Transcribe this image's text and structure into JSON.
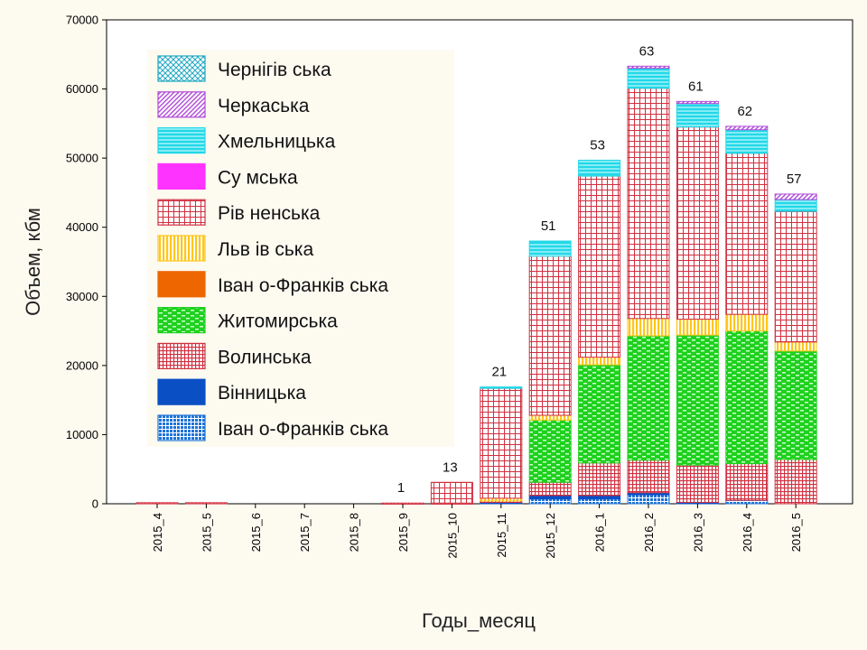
{
  "chart_data": {
    "type": "bar",
    "stacked": true,
    "xlabel": "Годы_месяц",
    "ylabel": "Объем, кбм",
    "ylim": [
      0,
      70000
    ],
    "yticks": [
      0,
      10000,
      20000,
      30000,
      40000,
      50000,
      60000,
      70000
    ],
    "grid": false,
    "legend_position": "top-left",
    "categories": [
      "2015_4",
      "2015_5",
      "2015_6",
      "2015_7",
      "2015_8",
      "2015_9",
      "2015_10",
      "2015_11",
      "2015_12",
      "2016_1",
      "2016_2",
      "2016_3",
      "2016_4",
      "2016_5"
    ],
    "annotations": [
      "",
      "",
      "",
      "",
      "",
      "1",
      "13",
      "21",
      "51",
      "53",
      "63",
      "61",
      "62",
      "57"
    ],
    "series": [
      {
        "name": "Іван о-Франків ська",
        "color": "#1e73d8",
        "pattern": "dots",
        "values": [
          0,
          0,
          0,
          0,
          0,
          0,
          0,
          0,
          700,
          700,
          1300,
          0,
          500,
          0
        ]
      },
      {
        "name": "Вінницька",
        "color": "#0a4fc4",
        "pattern": "solid",
        "values": [
          0,
          0,
          0,
          0,
          0,
          0,
          0,
          200,
          500,
          500,
          300,
          200,
          0,
          0
        ]
      },
      {
        "name": "Волинська",
        "color": "#d03040",
        "pattern": "dense-grid",
        "values": [
          150,
          150,
          0,
          0,
          0,
          100,
          100,
          200,
          1900,
          4700,
          4700,
          5400,
          5300,
          6400
        ]
      },
      {
        "name": "Житомирська",
        "color": "#1fd11f",
        "pattern": "bricks",
        "values": [
          0,
          0,
          0,
          0,
          0,
          0,
          0,
          0,
          9000,
          14200,
          18000,
          18800,
          19200,
          15700
        ]
      },
      {
        "name": "Іван о-Франків ська",
        "color": "#ee6600",
        "pattern": "solid",
        "values": [
          0,
          0,
          0,
          0,
          0,
          0,
          0,
          0,
          0,
          0,
          0,
          0,
          0,
          0
        ]
      },
      {
        "name": "Льв ів ська",
        "color": "#ffc61a",
        "pattern": "vstripes",
        "values": [
          0,
          0,
          0,
          0,
          0,
          0,
          0,
          400,
          700,
          1100,
          2500,
          2300,
          2400,
          1300
        ]
      },
      {
        "name": "Рів ненська",
        "color": "#d03040",
        "pattern": "grid",
        "values": [
          0,
          0,
          0,
          0,
          0,
          0,
          3000,
          15900,
          23000,
          26200,
          33300,
          27800,
          23300,
          18900
        ]
      },
      {
        "name": "Су мська",
        "color": "#ff33ff",
        "pattern": "solid",
        "values": [
          0,
          0,
          0,
          0,
          0,
          0,
          0,
          0,
          0,
          0,
          0,
          0,
          0,
          0
        ]
      },
      {
        "name": "Хмельницька",
        "color": "#22d8e8",
        "pattern": "hstripes",
        "values": [
          0,
          0,
          0,
          0,
          0,
          0,
          0,
          200,
          2200,
          2300,
          2900,
          3400,
          3400,
          1700
        ]
      },
      {
        "name": "Черкаська",
        "color": "#b04ad8",
        "pattern": "diag",
        "values": [
          0,
          0,
          0,
          0,
          0,
          0,
          0,
          0,
          0,
          0,
          300,
          300,
          500,
          800
        ]
      },
      {
        "name": "Чернігів ська",
        "color": "#20a8c0",
        "pattern": "crosshatch",
        "values": [
          0,
          0,
          0,
          0,
          0,
          0,
          0,
          0,
          0,
          0,
          0,
          0,
          0,
          0
        ]
      }
    ]
  }
}
